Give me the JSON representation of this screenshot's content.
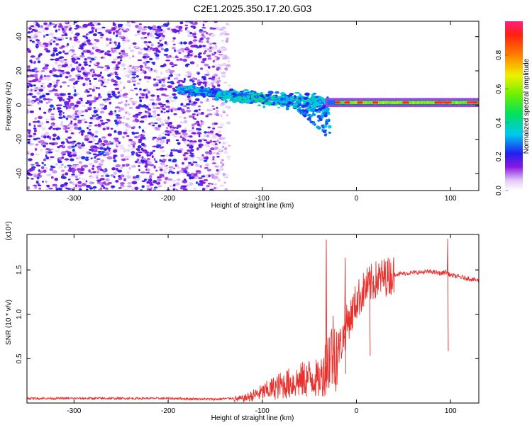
{
  "title": "C2E1.2025.350.17.20.G03",
  "colors": {
    "snr_line": "#e8302c",
    "spectro_background": "#ffffff",
    "axis": "#000000"
  },
  "chart_data": [
    {
      "type": "heatmap",
      "name": "spectrogram",
      "title": "C2E1.2025.350.17.20.G03",
      "xlabel": "Height of straight line (km)",
      "ylabel": "Frequency (Hz)",
      "xlim": [
        -350,
        130
      ],
      "ylim": [
        -50,
        49
      ],
      "xticks": [
        -300,
        -200,
        -100,
        0,
        100
      ],
      "yticks": [
        -40,
        -20,
        0,
        20,
        40
      ],
      "colorbar": {
        "label": "Normalized spectral amplitude",
        "range": [
          0,
          1
        ],
        "ticks": [
          0.0,
          0.2,
          0.4,
          0.6,
          0.8
        ],
        "tick_labels": [
          "0.0",
          "0.2",
          "0.4",
          "0.6",
          "0.8"
        ]
      },
      "regions": [
        {
          "x_range": [
            -350,
            -140
          ],
          "description": "broadband noise, amplitude 0.05-0.25"
        },
        {
          "x_range": [
            -190,
            -30
          ],
          "freq_center": 5,
          "amplitude": 0.35
        },
        {
          "x_range": [
            -30,
            130
          ],
          "freq_center": 1.5,
          "amplitude": 0.6
        },
        {
          "x_range": [
            85,
            100
          ],
          "freq_center": 1.5,
          "amplitude": 0.95
        }
      ]
    },
    {
      "type": "line",
      "name": "snr",
      "xlabel": "Height of straight line (km)",
      "ylabel": "SNR (10 * v/v)",
      "multiplier_label": "(x10⁴)",
      "xlim": [
        -350,
        130
      ],
      "ylim": [
        0,
        1.9
      ],
      "xticks": [
        -300,
        -200,
        -100,
        0,
        100
      ],
      "yticks": [
        0.5,
        1.0,
        1.5
      ],
      "ytick_labels": [
        "0.5",
        "1.0",
        "1.5"
      ],
      "series": [
        {
          "name": "SNR",
          "x": [
            -350,
            -300,
            -250,
            -200,
            -150,
            -120,
            -100,
            -80,
            -60,
            -45,
            -40,
            -35,
            -30,
            -25,
            -20,
            -15,
            -10,
            -5,
            0,
            10,
            20,
            30,
            40,
            60,
            80,
            90,
            95,
            100,
            110,
            120,
            130
          ],
          "y": [
            0.04,
            0.04,
            0.04,
            0.04,
            0.03,
            0.05,
            0.12,
            0.2,
            0.25,
            0.3,
            0.25,
            0.35,
            0.5,
            0.6,
            0.6,
            0.7,
            0.9,
            1.0,
            1.15,
            1.3,
            1.38,
            1.42,
            1.45,
            1.47,
            1.48,
            1.46,
            1.48,
            1.44,
            1.42,
            1.4,
            1.38
          ],
          "spikes": [
            {
              "x": -32,
              "y": 1.84
            },
            {
              "x": -12,
              "y": 1.64
            },
            {
              "x": 14,
              "y": 1.47
            },
            {
              "x": 97,
              "y": 1.85
            }
          ]
        }
      ]
    }
  ]
}
